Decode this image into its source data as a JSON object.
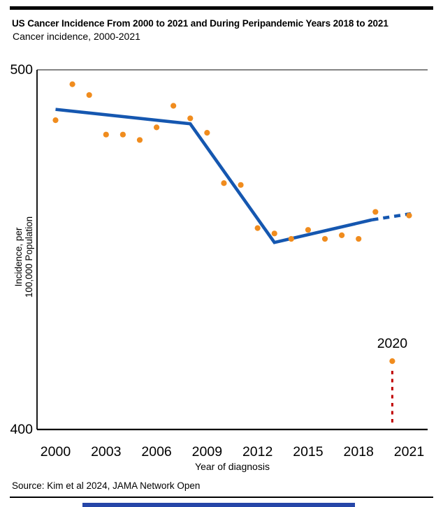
{
  "header": {
    "title": "US Cancer Incidence From 2000 to 2021 and During Peripandemic Years 2018 to 2021",
    "subtitle": "Cancer incidence, 2000-2021"
  },
  "footer": {
    "source": "Source: Kim et al 2024, JAMA Network Open"
  },
  "chart_data": {
    "type": "scatter",
    "title": "Cancer incidence, 2000-2021",
    "xlabel": "Year of diagnosis",
    "ylabel_lines": [
      "Incidence, per",
      "100,000 Population"
    ],
    "x_domain": [
      1998.9,
      2022.1
    ],
    "y_domain": [
      400,
      500
    ],
    "x_ticks": [
      2000,
      2003,
      2006,
      2009,
      2012,
      2015,
      2018,
      2021
    ],
    "y_ticks": [
      400,
      500
    ],
    "grid": "top-line-only",
    "points": {
      "years": [
        2000,
        2001,
        2002,
        2003,
        2004,
        2005,
        2006,
        2007,
        2008,
        2009,
        2010,
        2011,
        2012,
        2013,
        2014,
        2015,
        2016,
        2017,
        2018,
        2019,
        2020,
        2021
      ],
      "values": [
        486,
        496,
        493,
        482,
        482,
        480.5,
        484,
        490,
        486.5,
        482.5,
        468.5,
        468,
        456,
        454.5,
        453,
        455.5,
        453,
        454,
        453,
        460.5,
        419,
        459.5
      ]
    },
    "trend_solid": [
      [
        2000,
        489
      ],
      [
        2008,
        485
      ],
      [
        2013,
        452
      ],
      [
        2018.8,
        458.3
      ]
    ],
    "trend_dashed": [
      [
        2018.8,
        458.3
      ],
      [
        2021.1,
        460
      ]
    ],
    "annotation": {
      "label": "2020",
      "year": 2020,
      "value": 419,
      "line_top_value": 416.3,
      "line_bottom_value": 400.8
    },
    "colors": {
      "point": "#F08C1E",
      "trend": "#1557B0",
      "annotation": "#C00000",
      "axis": "#000000",
      "gridline": "#3a3a3a"
    }
  }
}
